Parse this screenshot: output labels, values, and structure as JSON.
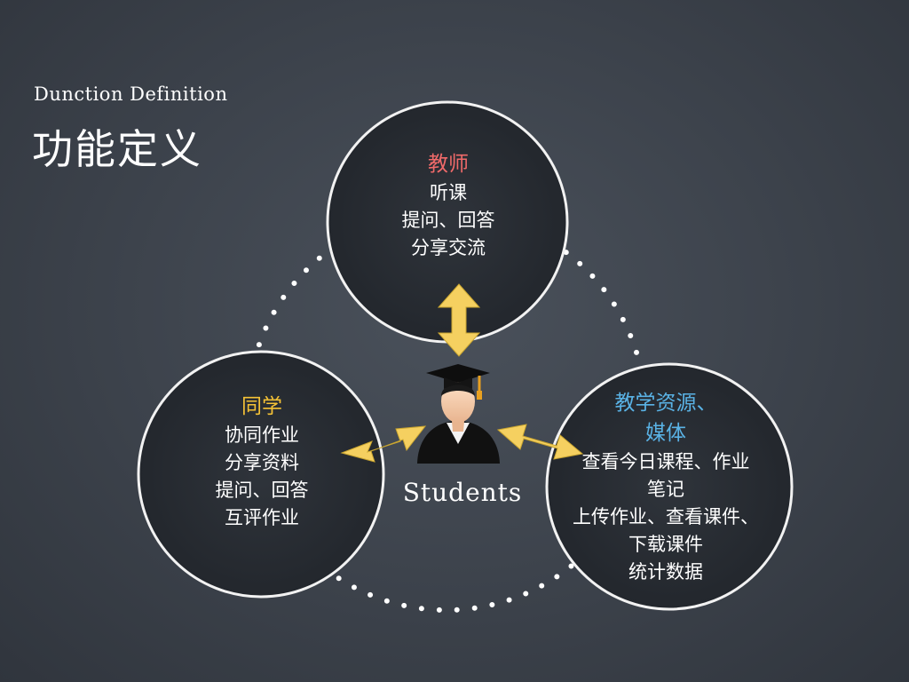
{
  "header": {
    "subtitle": "Dunction Definition",
    "title": "功能定义"
  },
  "center": {
    "label": "Students",
    "icon": "graduate-student-icon"
  },
  "nodes": {
    "teacher": {
      "heading": "教师",
      "items": [
        "听课",
        "提问、回答",
        "分享交流"
      ]
    },
    "peer": {
      "heading": "同学",
      "items": [
        "协同作业",
        "分享资料",
        "提问、回答",
        "互评作业"
      ]
    },
    "media": {
      "heading_lines": [
        "教学资源、",
        "媒体"
      ],
      "items": [
        "查看今日课程、作业",
        "笔记",
        "上传作业、查看课件、",
        "下载课件",
        "统计数据"
      ]
    }
  },
  "colors": {
    "background": "#3c424b",
    "teacher_heading": "#f06a6a",
    "peer_heading": "#f5c236",
    "media_heading": "#5ab3e6",
    "arrow": "#f5d060",
    "tassel": "#e8a020"
  }
}
